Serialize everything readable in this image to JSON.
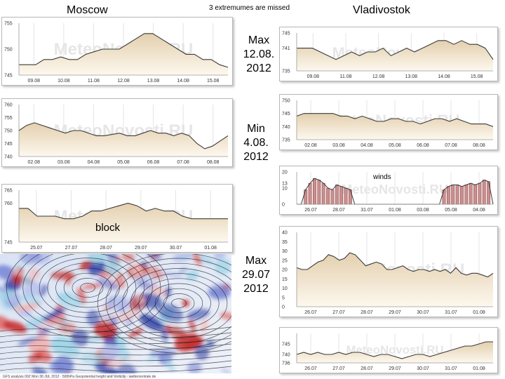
{
  "header": {
    "left_city": "Moscow",
    "right_city": "Vladivostok",
    "note": "3 extremumes are missed"
  },
  "annotations": {
    "max1": [
      "Max",
      "12.08.",
      "2012"
    ],
    "min1": [
      "Min",
      "4.08.",
      "2012"
    ],
    "max2": [
      "Max",
      "29.07",
      "2012"
    ],
    "block": "block",
    "winds": "winds"
  },
  "watermark": "MeteoNovosti.RU",
  "map_caption": "GFS analysis 00Z Mon 30 JUL 2012 · 500hPa Geopotential height and Vorticity · wetterzentrale.de",
  "colors": {
    "line": "#3a3a3a",
    "fill_top": "#e3cfae",
    "fill_bottom": "#fdf8ee",
    "bar": "#c98f8f",
    "bar_edge": "#8a3c3c",
    "grid": "#e4e4e4"
  },
  "chart_data": [
    {
      "id": "msk1",
      "type": "area",
      "title": "",
      "ylim": [
        745,
        755
      ],
      "yticks": [
        745,
        750,
        755
      ],
      "xticks": [
        "09.08",
        "10.08",
        "11.08",
        "12.08",
        "13.08",
        "14.08",
        "15.08"
      ],
      "values": [
        747,
        747,
        747,
        748,
        748,
        748.5,
        748,
        748,
        749,
        749.5,
        750,
        750,
        750,
        751,
        752,
        753,
        753,
        752,
        751,
        750,
        749,
        749,
        748,
        748,
        747,
        746.5
      ]
    },
    {
      "id": "msk2",
      "type": "area",
      "title": "",
      "ylim": [
        740,
        760
      ],
      "yticks": [
        740,
        745,
        750,
        755,
        760
      ],
      "xticks": [
        "02.08",
        "03.08",
        "04.08",
        "05.08",
        "06.08",
        "07.08",
        "08.08"
      ],
      "values": [
        750,
        752,
        753,
        752,
        751,
        750,
        749,
        750,
        750,
        749,
        748,
        748,
        748.5,
        749,
        748,
        748,
        749,
        750,
        749,
        749,
        748,
        749,
        748,
        745,
        743,
        744,
        746,
        748
      ]
    },
    {
      "id": "msk3",
      "type": "area",
      "title": "",
      "ylim": [
        745,
        765
      ],
      "yticks": [
        745,
        760,
        765
      ],
      "xticks": [
        "25.07",
        "27.07",
        "28.07",
        "29.07",
        "30.07",
        "01.08"
      ],
      "values": [
        758,
        758,
        755,
        755,
        755,
        754,
        754,
        755,
        757,
        757,
        758,
        759,
        760,
        759,
        757,
        758,
        757,
        757,
        755,
        754,
        754,
        754,
        754,
        754
      ]
    },
    {
      "id": "vl1",
      "type": "area",
      "title": "",
      "ylim": [
        735,
        745
      ],
      "yticks": [
        735,
        741,
        745
      ],
      "xticks": [
        "09.08",
        "11.08",
        "12.08",
        "13.08",
        "14.08",
        "15.08"
      ],
      "values": [
        741,
        741,
        741,
        740,
        739,
        738,
        739,
        740,
        739,
        740,
        740,
        741,
        739,
        740,
        741,
        740,
        741,
        742,
        743,
        743,
        742,
        743,
        742,
        742,
        741,
        738
      ]
    },
    {
      "id": "vl2",
      "type": "area",
      "title": "",
      "ylim": [
        735,
        750
      ],
      "yticks": [
        735,
        740,
        745,
        750
      ],
      "xticks": [
        "02.08",
        "03.08",
        "04.08",
        "05.08",
        "06.08",
        "07.08",
        "08.08"
      ],
      "values": [
        744,
        745,
        745,
        745,
        745,
        745,
        744,
        744,
        743,
        744,
        743,
        742,
        742,
        743,
        743,
        742,
        742,
        741,
        742,
        743,
        743,
        742,
        743,
        742,
        741,
        741,
        741,
        740
      ]
    },
    {
      "id": "vl3",
      "type": "bar",
      "title": "winds",
      "ylim": [
        0,
        20
      ],
      "yticks": [
        0,
        10,
        13,
        20
      ],
      "xticks": [
        "26.07",
        "28.07",
        "31.07",
        "01.08",
        "03.08",
        "05.08",
        "04.08"
      ],
      "values": [
        0,
        0,
        9,
        13,
        16,
        15,
        13,
        10,
        9,
        12,
        11,
        10,
        9,
        0,
        0,
        0,
        0,
        0,
        0,
        0,
        0,
        0,
        0,
        0,
        0,
        0,
        0,
        0,
        0,
        0,
        0,
        0,
        0,
        9,
        11,
        12,
        12,
        11,
        12,
        13,
        12,
        13,
        15,
        14,
        0
      ]
    },
    {
      "id": "vl4",
      "type": "area",
      "title": "",
      "ylim": [
        0,
        40
      ],
      "yticks": [
        0,
        5,
        10,
        15,
        20,
        25,
        30,
        35,
        40
      ],
      "xticks": [
        "26.07",
        "27.07",
        "28.07",
        "29.07",
        "30.07",
        "31.07",
        "01.08"
      ],
      "values": [
        21,
        20,
        20,
        22,
        24,
        25,
        28,
        27,
        25,
        26,
        29,
        28,
        25,
        22,
        23,
        24,
        23,
        20,
        20,
        21,
        22,
        20,
        19,
        20,
        20,
        19,
        20,
        19,
        20,
        18,
        21,
        18,
        17,
        18,
        18,
        17,
        16,
        18
      ]
    },
    {
      "id": "vl5",
      "type": "area",
      "title": "",
      "ylim": [
        736,
        750
      ],
      "yticks": [
        736,
        740,
        745
      ],
      "xticks": [
        "26.07",
        "27.07",
        "28.07",
        "29.07",
        "30.07",
        "31.07",
        "01.08"
      ],
      "values": [
        740,
        741,
        740,
        741,
        740,
        740,
        741,
        740,
        741,
        741,
        740,
        739,
        740,
        740,
        739,
        738,
        739,
        740,
        740,
        739,
        740,
        741,
        742,
        743,
        744,
        744,
        745,
        746,
        746
      ]
    }
  ]
}
